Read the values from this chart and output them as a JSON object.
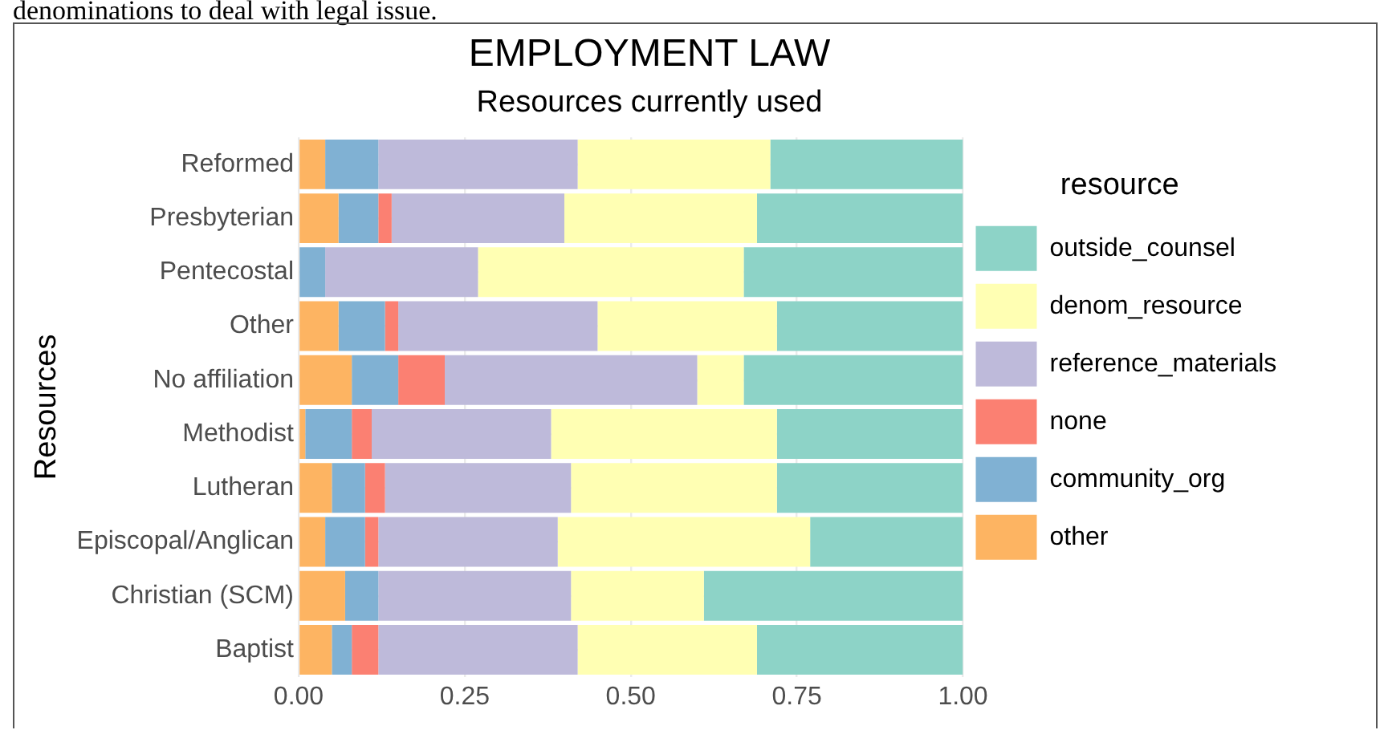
{
  "chart_data": {
    "type": "bar",
    "orientation": "horizontal",
    "stacked": true,
    "title": "EMPLOYMENT LAW",
    "subtitle": "Resources currently used",
    "ylabel": "Resources",
    "legend_title": "resource",
    "legend": "right",
    "grid": true,
    "annotations": [
      "denominations to deal with legal issue."
    ],
    "categories": [
      "Reformed",
      "Presbyterian",
      "Pentecostal",
      "Other",
      "No affiliation",
      "Methodist",
      "Lutheran",
      "Episcopal/Anglican",
      "Christian (SCM)",
      "Baptist"
    ],
    "xlim": [
      0,
      1
    ],
    "xticks": [
      {
        "value": 0,
        "label": "0.00"
      },
      {
        "value": 0.25,
        "label": "0.25"
      },
      {
        "value": 0.5,
        "label": "0.50"
      },
      {
        "value": 0.75,
        "label": "0.75"
      },
      {
        "value": 1,
        "label": "1.00"
      }
    ],
    "series": [
      {
        "name": "other",
        "color": "#fdb462",
        "values": [
          0.04,
          0.06,
          0,
          0.06,
          0.08,
          0.01,
          0.05,
          0.04,
          0.07,
          0.05
        ]
      },
      {
        "name": "community_org",
        "color": "#80b1d3",
        "values": [
          0.08,
          0.06,
          0.04,
          0.07,
          0.07,
          0.07,
          0.05,
          0.06,
          0.05,
          0.03
        ]
      },
      {
        "name": "none",
        "color": "#fb8072",
        "values": [
          0,
          0.02,
          0,
          0.02,
          0.07,
          0.03,
          0.03,
          0.02,
          0,
          0.04
        ]
      },
      {
        "name": "reference_materials",
        "color": "#bebada",
        "values": [
          0.3,
          0.26,
          0.23,
          0.3,
          0.38,
          0.27,
          0.28,
          0.27,
          0.29,
          0.3
        ]
      },
      {
        "name": "denom_resource",
        "color": "#ffffb3",
        "values": [
          0.29,
          0.29,
          0.4,
          0.27,
          0.07,
          0.34,
          0.31,
          0.38,
          0.2,
          0.27
        ]
      },
      {
        "name": "outside_counsel",
        "color": "#8dd3c7",
        "values": [
          0.29,
          0.31,
          0.33,
          0.28,
          0.33,
          0.28,
          0.28,
          0.23,
          0.39,
          0.31
        ]
      }
    ]
  }
}
